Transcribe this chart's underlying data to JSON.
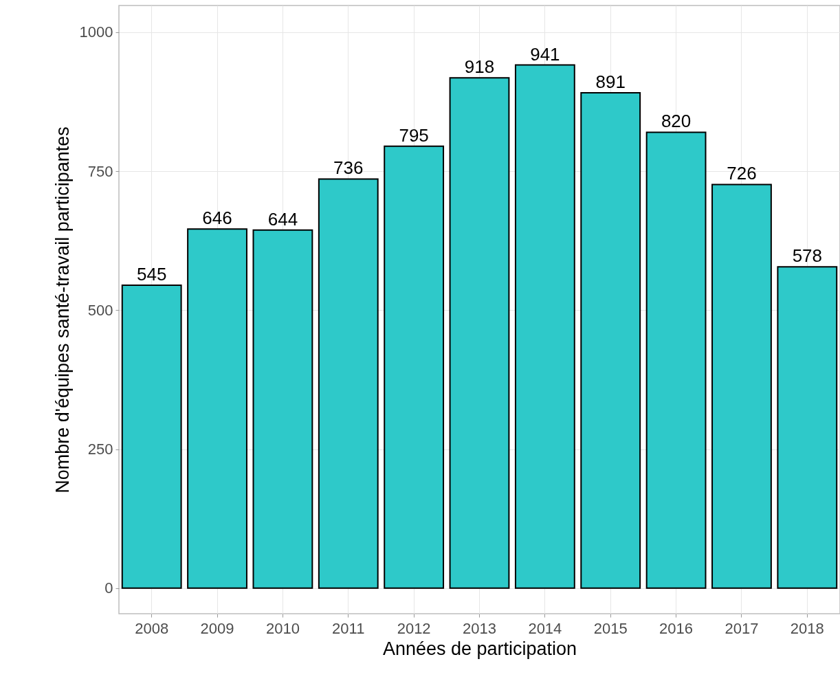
{
  "chart_data": {
    "type": "bar",
    "xlabel": "Années de participation",
    "ylabel": "Nombre d'équipes santé-travail participantes",
    "categories": [
      "2008",
      "2009",
      "2010",
      "2011",
      "2012",
      "2013",
      "2014",
      "2015",
      "2016",
      "2017",
      "2018"
    ],
    "values": [
      545,
      646,
      644,
      736,
      795,
      918,
      941,
      891,
      820,
      726,
      578
    ],
    "color": "#2ec9c9",
    "ylim": [
      -46,
      1048
    ],
    "yticks": [
      0,
      250,
      500,
      750,
      1000
    ],
    "grid": true,
    "data_labels": true
  }
}
